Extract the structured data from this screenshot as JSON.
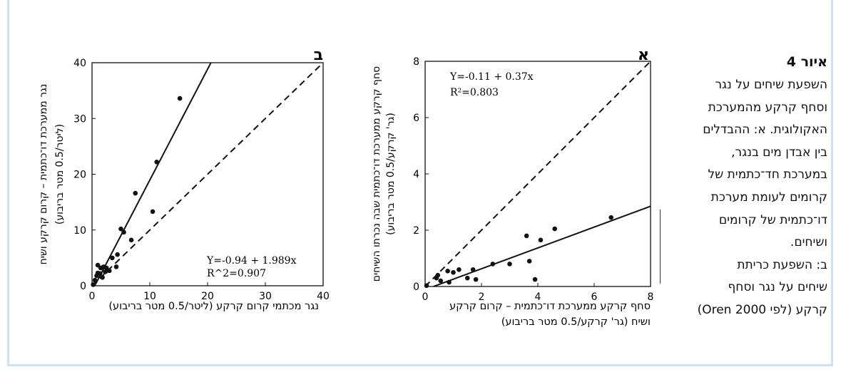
{
  "caption": {
    "title": "איור 4",
    "lines": [
      "השפעת שיחים על נגר",
      "וסחף קרקע מהמערכת",
      "האקולוגית. א: ההבדלים",
      "בין אבדן מים בנגר,",
      "במערכת חד־כתמית של",
      "קרומים לעומת מערכת",
      "דו־כתמית של קרומים",
      "ושיחים.",
      "ב: השפעת כריתת",
      "שיחים על נגר וסחף",
      "קרקע (לפי Oren 2000)"
    ]
  },
  "chart_data": [
    {
      "id": "alef",
      "type": "scatter",
      "panel_label": "א",
      "xlabel_lines": [
        "סחף קרקע ממערכת דו־כתמית – קרום קרקע",
        "ושיח (גר' קרקע/0.5 מטר בריבוע)"
      ],
      "ylabel_lines": [
        "סחף קרקע ממערכת דו־כתמית שבה נכרתו השיחים",
        "(גר' קרקע/0.5 מטר בריבוע)"
      ],
      "xlim": [
        0,
        8
      ],
      "ylim": [
        0,
        8
      ],
      "xticks": [
        0,
        2,
        4,
        6,
        8
      ],
      "yticks": [
        0,
        2,
        4,
        6,
        8
      ],
      "equation": "Y=-0.11 + 0.37x",
      "r2": "R²=0.803",
      "points": [
        [
          0.05,
          0.03
        ],
        [
          0.4,
          0.3
        ],
        [
          0.45,
          0.4
        ],
        [
          0.55,
          0.2
        ],
        [
          0.8,
          0.55
        ],
        [
          0.85,
          0.15
        ],
        [
          1.0,
          0.5
        ],
        [
          1.2,
          0.6
        ],
        [
          1.5,
          0.3
        ],
        [
          1.7,
          0.6
        ],
        [
          1.8,
          0.25
        ],
        [
          2.4,
          0.8
        ],
        [
          3.0,
          0.8
        ],
        [
          3.6,
          1.8
        ],
        [
          3.7,
          0.9
        ],
        [
          3.9,
          0.25
        ],
        [
          4.1,
          1.65
        ],
        [
          4.6,
          2.05
        ],
        [
          6.6,
          2.45
        ]
      ],
      "fit": {
        "intercept": -0.11,
        "slope": 0.37
      },
      "identity": true
    },
    {
      "id": "bet",
      "type": "scatter",
      "panel_label": "ב",
      "xlabel_lines": [
        "נגר מכתמי קרום קרקע (ליטר/0.5 מטר בריבוע)"
      ],
      "ylabel_lines": [
        "נגר ממערכת דו־כתמית – קרום קרקע ושיח",
        "(ליטר/0.5 מטר בריבוע)"
      ],
      "xlim": [
        0,
        40
      ],
      "ylim": [
        0,
        40
      ],
      "xticks": [
        0,
        10,
        20,
        30,
        40
      ],
      "yticks": [
        0,
        10,
        20,
        30,
        40
      ],
      "equation": "Y=-0.94 + 1.989x",
      "r2": "R^2=0.907",
      "points": [
        [
          0.2,
          0.2
        ],
        [
          0.5,
          1.0
        ],
        [
          0.8,
          1.8
        ],
        [
          1.0,
          2.3
        ],
        [
          1.0,
          3.7
        ],
        [
          1.4,
          2.2
        ],
        [
          1.5,
          3.2
        ],
        [
          1.8,
          1.5
        ],
        [
          2.0,
          3.4
        ],
        [
          2.3,
          2.5
        ],
        [
          2.5,
          3.2
        ],
        [
          3.0,
          2.7
        ],
        [
          3.5,
          5.0
        ],
        [
          4.2,
          3.4
        ],
        [
          4.4,
          5.6
        ],
        [
          5.0,
          10.2
        ],
        [
          5.5,
          9.6
        ],
        [
          6.8,
          8.2
        ],
        [
          7.5,
          16.6
        ],
        [
          10.5,
          13.3
        ],
        [
          11.2,
          22.2
        ],
        [
          15.2,
          33.6
        ]
      ],
      "fit": {
        "intercept": -0.94,
        "slope": 1.989
      },
      "identity": true
    }
  ]
}
